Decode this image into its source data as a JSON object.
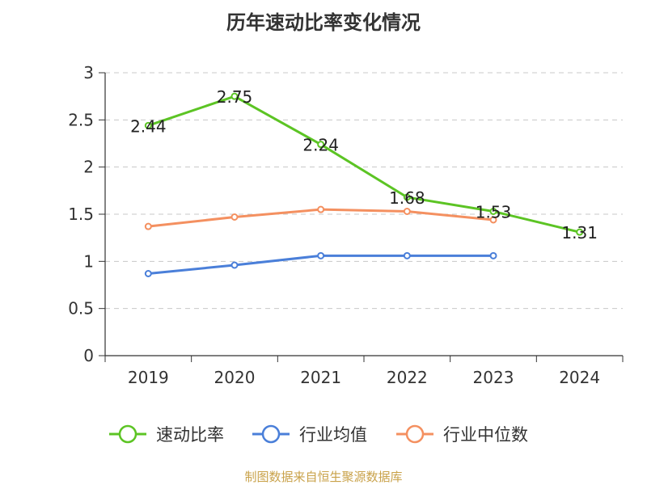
{
  "chart_data": {
    "type": "line",
    "title": "历年速动比率变化情况",
    "categories": [
      "2019",
      "2020",
      "2021",
      "2022",
      "2023",
      "2024"
    ],
    "ylim": [
      0,
      3
    ],
    "yticks": [
      0,
      0.5,
      1,
      1.5,
      2,
      2.5,
      3
    ],
    "ytick_labels": [
      "0",
      "0.5",
      "1",
      "1.5",
      "2",
      "2.5",
      "3"
    ],
    "grid": true,
    "legend_position": "bottom",
    "series": [
      {
        "name": "速动比率",
        "color": "#5cc424",
        "values": [
          2.44,
          2.75,
          2.24,
          1.68,
          1.53,
          1.31
        ],
        "labels": [
          "2.44",
          "2.75",
          "2.24",
          "1.68",
          "1.53",
          "1.31"
        ],
        "show_labels": true
      },
      {
        "name": "行业均值",
        "color": "#4a7fd9",
        "values": [
          0.87,
          0.96,
          1.06,
          1.06,
          1.06,
          null
        ],
        "show_labels": false
      },
      {
        "name": "行业中位数",
        "color": "#f49060",
        "values": [
          1.37,
          1.47,
          1.55,
          1.53,
          1.44,
          null
        ],
        "show_labels": false
      }
    ]
  },
  "source": "制图数据来自恒生聚源数据库"
}
